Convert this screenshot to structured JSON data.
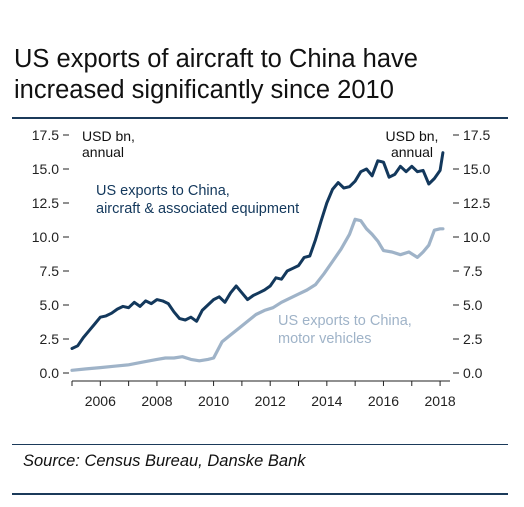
{
  "title": "US exports of aircraft to China have increased significantly since 2010",
  "source": "Source: Census Bureau, Danske Bank",
  "colors": {
    "aircraft": "#13385c",
    "motor": "#9fb3c8",
    "frame": "#1b3a5a"
  },
  "chart_data": {
    "type": "line",
    "left_unit": "USD bn,\nannual",
    "right_unit": "USD bn,\nannual",
    "xlim": [
      2005.0,
      2018.35
    ],
    "ylim": [
      0,
      17.5
    ],
    "y_ticks": [
      "0.0",
      "2.5",
      "5.0",
      "7.5",
      "10.0",
      "12.5",
      "15.0",
      "17.5"
    ],
    "x_ticks": [
      "2006",
      "2008",
      "2010",
      "2012",
      "2014",
      "2016",
      "2018"
    ],
    "grid": false,
    "series": [
      {
        "name": "US exports to China,\naircraft & associated equipment",
        "x": [
          2005.0,
          2005.2,
          2005.4,
          2005.6,
          2005.8,
          2006.0,
          2006.2,
          2006.4,
          2006.6,
          2006.8,
          2007.0,
          2007.2,
          2007.4,
          2007.6,
          2007.8,
          2008.0,
          2008.2,
          2008.4,
          2008.6,
          2008.8,
          2009.0,
          2009.2,
          2009.4,
          2009.6,
          2009.8,
          2010.0,
          2010.2,
          2010.4,
          2010.6,
          2010.8,
          2011.0,
          2011.2,
          2011.4,
          2011.6,
          2011.8,
          2012.0,
          2012.2,
          2012.4,
          2012.6,
          2012.8,
          2013.0,
          2013.2,
          2013.4,
          2013.6,
          2013.8,
          2014.0,
          2014.2,
          2014.4,
          2014.6,
          2014.8,
          2015.0,
          2015.2,
          2015.4,
          2015.6,
          2015.8,
          2016.0,
          2016.2,
          2016.4,
          2016.6,
          2016.8,
          2017.0,
          2017.2,
          2017.4,
          2017.6,
          2017.8,
          2018.0,
          2018.1
        ],
        "values": [
          1.8,
          2.0,
          2.6,
          3.1,
          3.6,
          4.1,
          4.2,
          4.4,
          4.7,
          4.9,
          4.8,
          5.2,
          4.9,
          5.3,
          5.1,
          5.4,
          5.3,
          5.1,
          4.5,
          4.0,
          3.9,
          4.1,
          3.8,
          4.6,
          5.0,
          5.4,
          5.6,
          5.2,
          5.9,
          6.4,
          5.9,
          5.4,
          5.7,
          5.9,
          6.1,
          6.4,
          7.0,
          6.9,
          7.5,
          7.7,
          7.9,
          8.5,
          8.6,
          9.8,
          11.2,
          12.5,
          13.5,
          14.0,
          13.6,
          13.7,
          14.1,
          14.8,
          15.0,
          14.5,
          15.6,
          15.5,
          14.4,
          14.6,
          15.2,
          14.8,
          15.2,
          14.8,
          14.9,
          13.9,
          14.3,
          14.9,
          16.2
        ],
        "color": "#13385c"
      },
      {
        "name": "US exports to China,\nmotor vehicles",
        "x": [
          2005.0,
          2005.5,
          2006.0,
          2006.5,
          2007.0,
          2007.5,
          2008.0,
          2008.3,
          2008.6,
          2008.9,
          2009.2,
          2009.5,
          2009.8,
          2010.0,
          2010.3,
          2010.6,
          2010.9,
          2011.2,
          2011.5,
          2011.8,
          2012.1,
          2012.4,
          2012.7,
          2013.0,
          2013.3,
          2013.6,
          2013.9,
          2014.2,
          2014.5,
          2014.8,
          2015.0,
          2015.2,
          2015.4,
          2015.6,
          2015.8,
          2016.0,
          2016.3,
          2016.6,
          2016.9,
          2017.2,
          2017.4,
          2017.6,
          2017.8,
          2018.0,
          2018.1
        ],
        "values": [
          0.2,
          0.3,
          0.4,
          0.5,
          0.6,
          0.8,
          1.0,
          1.1,
          1.1,
          1.2,
          1.0,
          0.9,
          1.0,
          1.1,
          2.3,
          2.8,
          3.3,
          3.8,
          4.3,
          4.6,
          4.8,
          5.2,
          5.5,
          5.8,
          6.1,
          6.5,
          7.3,
          8.2,
          9.1,
          10.2,
          11.3,
          11.2,
          10.6,
          10.2,
          9.7,
          9.0,
          8.9,
          8.7,
          8.9,
          8.5,
          8.9,
          9.4,
          10.5,
          10.6,
          10.6
        ],
        "color": "#9fb3c8"
      }
    ]
  }
}
